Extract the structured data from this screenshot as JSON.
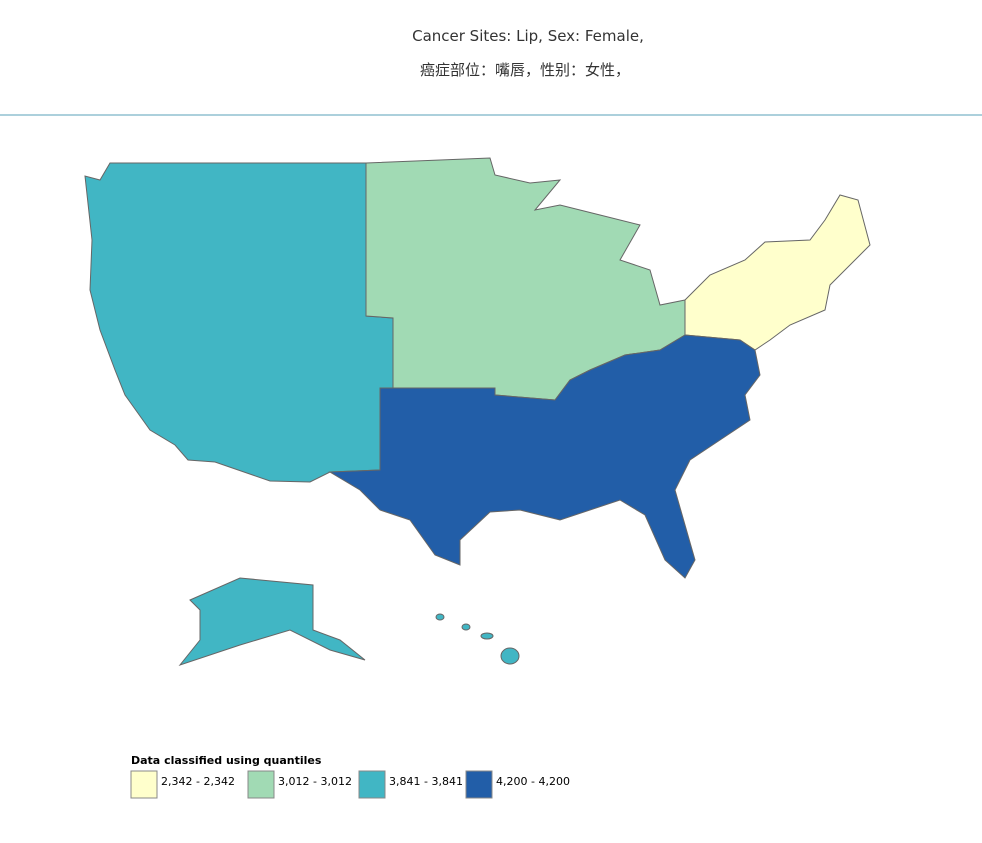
{
  "header": {
    "title": "Cancer Sites: Lip, Sex: Female,",
    "subtitle": "癌症部位：嘴唇，性别：女性，"
  },
  "legend": {
    "title": "Data classified using quantiles",
    "items": [
      {
        "label": "2,342 - 2,342",
        "color": "#ffffcc"
      },
      {
        "label": "3,012 - 3,012",
        "color": "#a1dab4"
      },
      {
        "label": "3,841 - 3,841",
        "color": "#41b6c4"
      },
      {
        "label": "4,200 - 4,200",
        "color": "#225ea8"
      }
    ]
  }
}
